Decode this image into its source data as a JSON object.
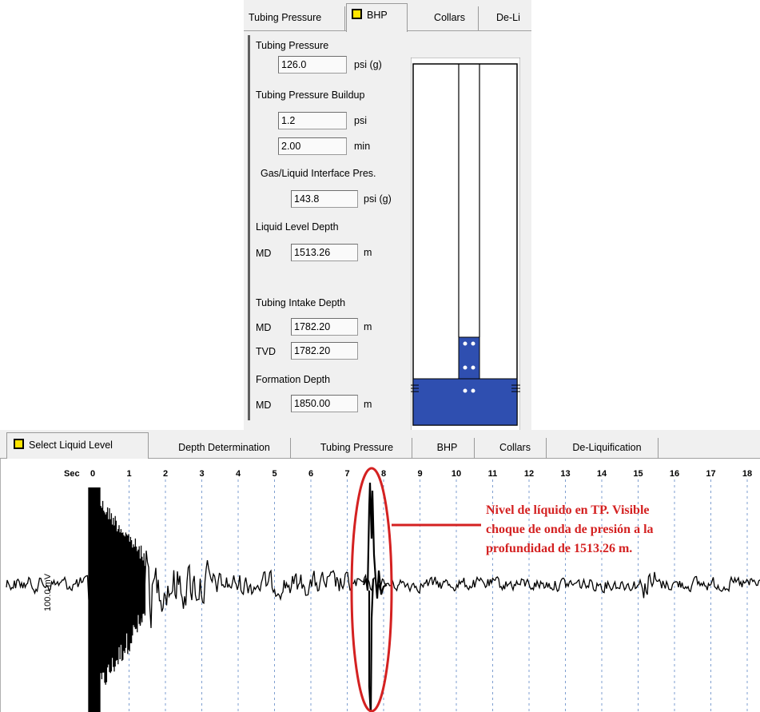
{
  "bhp_panel": {
    "tabs": [
      {
        "label": "Tubing Pressure",
        "active": false
      },
      {
        "label": "BHP",
        "active": true
      },
      {
        "label": "Collars",
        "active": false
      },
      {
        "label": "De-Li",
        "active": false
      }
    ],
    "tubing_pressure": {
      "label": "Tubing Pressure",
      "value": "126.0",
      "unit": "psi (g)"
    },
    "buildup": {
      "label": "Tubing Pressure Buildup",
      "value1": "1.2",
      "unit1": "psi",
      "value2": "2.00",
      "unit2": "min"
    },
    "interface": {
      "label": "Gas/Liquid Interface Pres.",
      "value": "143.8",
      "unit": "psi (g)"
    },
    "liquid_level": {
      "label": "Liquid Level Depth",
      "md_label": "MD",
      "value": "1513.26",
      "unit": "m"
    },
    "intake": {
      "label": "Tubing Intake Depth",
      "md_label": "MD",
      "md_value": "1782.20",
      "md_unit": "m",
      "tvd_label": "TVD",
      "tvd_value": "1782.20"
    },
    "formation": {
      "label": "Formation Depth",
      "md_label": "MD",
      "value": "1850.00",
      "unit": "m"
    }
  },
  "acoustic_panel": {
    "tabs": [
      {
        "label": "Select Liquid Level",
        "active": true
      },
      {
        "label": "Depth Determination",
        "active": false
      },
      {
        "label": "Tubing Pressure",
        "active": false
      },
      {
        "label": "BHP",
        "active": false
      },
      {
        "label": "Collars",
        "active": false
      },
      {
        "label": "De-Liquification",
        "active": false
      }
    ],
    "axis_prefix": "Sec",
    "scale_label": "100.0 mV",
    "ticks": [
      "0",
      "1",
      "2",
      "3",
      "4",
      "5",
      "6",
      "7",
      "8",
      "9",
      "10",
      "11",
      "12",
      "13",
      "14",
      "15",
      "16",
      "17",
      "18"
    ],
    "annotation": [
      "Nivel de líquido en TP. Visible",
      "choque de onda de presión a la",
      "profundidad de 1513.26 m."
    ]
  },
  "colors": {
    "fluid": "#2f4fb0",
    "annotation": "#d42121",
    "marker": "#ffe400"
  }
}
